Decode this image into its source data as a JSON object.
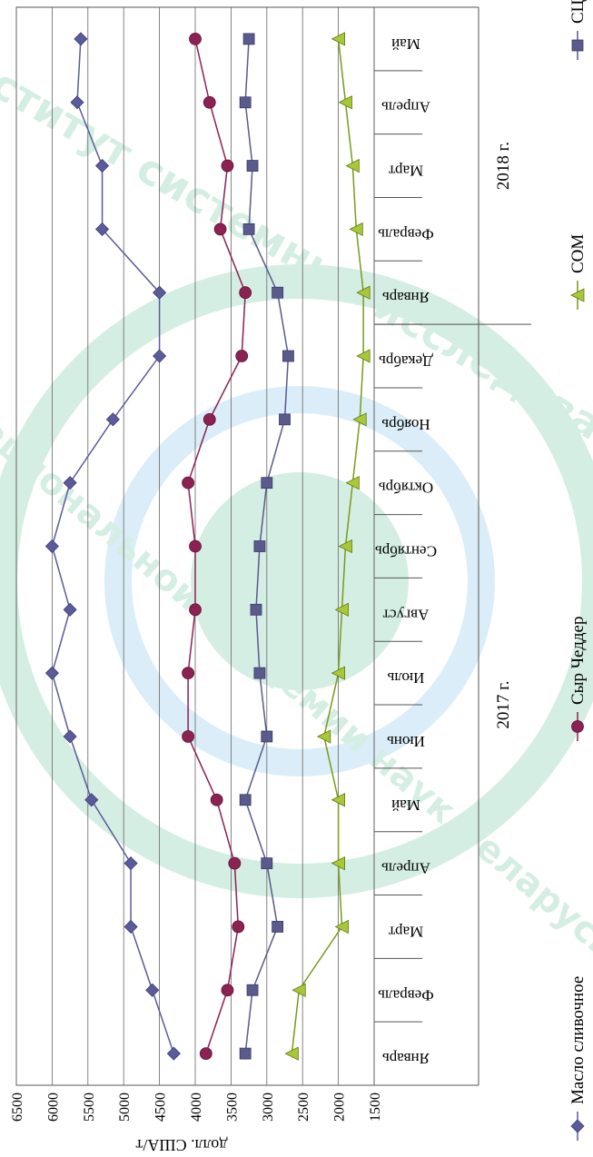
{
  "chart_data": {
    "type": "line",
    "ylabel": "долл. США/т",
    "ylim": [
      1500,
      6500
    ],
    "yticks": [
      1500,
      2000,
      2500,
      3000,
      3500,
      4000,
      4500,
      5000,
      5500,
      6000,
      6500
    ],
    "categories": [
      "Январь",
      "Февраль",
      "Март",
      "Апрель",
      "Май",
      "Июнь",
      "Июль",
      "Август",
      "Сентябрь",
      "Октябрь",
      "Ноябрь",
      "Декабрь",
      "Январь",
      "Февраль",
      "Март",
      "Апрель",
      "Май"
    ],
    "year_groups": [
      {
        "label": "2017 г.",
        "start": 0,
        "end": 11
      },
      {
        "label": "2018 г.",
        "start": 12,
        "end": 16
      }
    ],
    "grid": true,
    "legend_position": "bottom",
    "series": [
      {
        "name": "Масло сливочное",
        "color": "#5b5b9a",
        "marker": "diamond",
        "values": [
          4300,
          4600,
          4900,
          4900,
          5450,
          5750,
          6000,
          5750,
          6000,
          5750,
          5150,
          4500,
          4500,
          5300,
          5300,
          5650,
          5600
        ]
      },
      {
        "name": "Сыр Чеддер",
        "color": "#8b2252",
        "marker": "circle",
        "values": [
          3850,
          3550,
          3400,
          3450,
          3700,
          4100,
          4100,
          4000,
          4000,
          4100,
          3800,
          3350,
          3300,
          3650,
          3550,
          3800,
          4000
        ]
      },
      {
        "name": "СОМ",
        "color": "#7a9a1a",
        "marker": "triangle",
        "values": [
          2650,
          2550,
          1950,
          2000,
          2000,
          2200,
          2000,
          1950,
          1900,
          1800,
          1700,
          1650,
          1650,
          1750,
          1800,
          1900,
          2000
        ]
      },
      {
        "name": "СЦМ",
        "color": "#5a5a8c",
        "marker": "square",
        "values": [
          3300,
          3200,
          2850,
          3000,
          3300,
          3000,
          3100,
          3150,
          3100,
          3000,
          2750,
          2700,
          2850,
          3250,
          3200,
          3300,
          3250
        ]
      }
    ]
  },
  "watermark": {
    "line1": "Институт системных исследований",
    "line2": "национальной академии наук Беларуси"
  }
}
